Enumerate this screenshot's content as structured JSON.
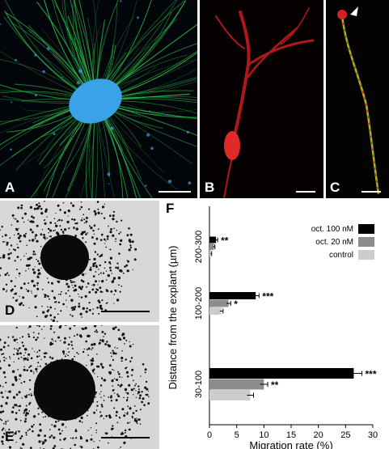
{
  "panels": {
    "A": {
      "label": "A"
    },
    "B": {
      "label": "B"
    },
    "C": {
      "label": "C"
    },
    "D": {
      "label": "D"
    },
    "E": {
      "label": "E"
    },
    "F": {
      "label": "F"
    }
  },
  "colors": {
    "oct_100": "#000000",
    "oct_20": "#8c8c8c",
    "control": "#cccccc",
    "neurite_green": "#2fbf4a",
    "explant_blue": "#3aa3e8",
    "neuron_red": "#d42020"
  },
  "chart_data": {
    "type": "bar",
    "orientation": "horizontal",
    "title": "",
    "xlabel": "Migration rate (%)",
    "ylabel": "Distance from the explant (µm)",
    "xlim": [
      0,
      30
    ],
    "xticks": [
      "0",
      "5",
      "10",
      "15",
      "20",
      "25",
      "30"
    ],
    "categories": [
      "200-300",
      "100-200",
      "30-100"
    ],
    "legend_position": "top-right",
    "grid": false,
    "series": [
      {
        "name": "oct. 100 nM",
        "color": "#000000",
        "values": [
          1.2,
          8.5,
          26.5
        ],
        "errors": [
          0.3,
          0.6,
          1.5
        ]
      },
      {
        "name": "oct. 20 nM",
        "color": "#8c8c8c",
        "values": [
          0.8,
          3.5,
          10.0
        ],
        "errors": [
          0.2,
          0.4,
          0.7
        ]
      },
      {
        "name": "control",
        "color": "#cccccc",
        "values": [
          0.3,
          2.2,
          7.5
        ],
        "errors": [
          0.1,
          0.3,
          0.6
        ]
      }
    ],
    "significance": [
      {
        "category": "200-300",
        "series": "oct. 100 nM",
        "mark": "**"
      },
      {
        "category": "100-200",
        "series": "oct. 100 nM",
        "mark": "***"
      },
      {
        "category": "100-200",
        "series": "oct. 20 nM",
        "mark": "*"
      },
      {
        "category": "30-100",
        "series": "oct. 100 nM",
        "mark": "***"
      },
      {
        "category": "30-100",
        "series": "oct. 20 nM",
        "mark": "**"
      }
    ]
  }
}
